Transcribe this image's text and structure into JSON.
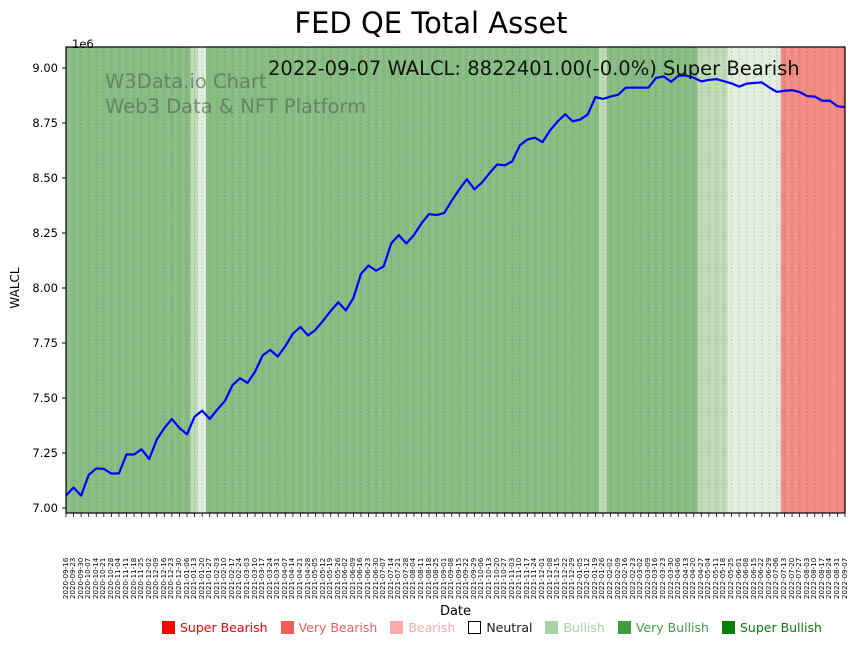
{
  "title": "FED QE Total Asset",
  "subtitle": "2022-09-07 WALCL: 8822401.00(-0.0%) Super Bearish",
  "watermark": {
    "line1": "W3Data.io Chart",
    "line2": "Web3 Data & NFT Platform"
  },
  "chart_data": {
    "type": "line",
    "title": "FED QE Total Asset",
    "xlabel": "Date",
    "ylabel": "WALCL",
    "y_offset_label": "1e6",
    "ylim": [
      6977000,
      9095000
    ],
    "yticks": [
      7000000,
      7250000,
      7500000,
      7750000,
      8000000,
      8250000,
      8500000,
      8750000,
      9000000
    ],
    "ytick_labels": [
      "7.00",
      "7.25",
      "7.50",
      "7.75",
      "8.00",
      "8.25",
      "8.50",
      "8.75",
      "9.00"
    ],
    "grid": {
      "vertical_dotted_per_week": true,
      "color": "#555555"
    },
    "line_color": "#0000ff",
    "x": [
      "2020-09-16",
      "2020-09-23",
      "2020-09-30",
      "2020-10-07",
      "2020-10-14",
      "2020-10-21",
      "2020-10-28",
      "2020-11-04",
      "2020-11-11",
      "2020-11-18",
      "2020-11-25",
      "2020-12-02",
      "2020-12-09",
      "2020-12-16",
      "2020-12-23",
      "2020-12-30",
      "2021-01-06",
      "2021-01-13",
      "2021-01-20",
      "2021-01-27",
      "2021-02-03",
      "2021-02-10",
      "2021-02-17",
      "2021-02-24",
      "2021-03-03",
      "2021-03-10",
      "2021-03-17",
      "2021-03-24",
      "2021-03-31",
      "2021-04-07",
      "2021-04-14",
      "2021-04-21",
      "2021-04-28",
      "2021-05-05",
      "2021-05-12",
      "2021-05-19",
      "2021-05-26",
      "2021-06-02",
      "2021-06-09",
      "2021-06-16",
      "2021-06-23",
      "2021-06-30",
      "2021-07-07",
      "2021-07-14",
      "2021-07-21",
      "2021-07-28",
      "2021-08-04",
      "2021-08-11",
      "2021-08-18",
      "2021-08-25",
      "2021-09-01",
      "2021-09-08",
      "2021-09-15",
      "2021-09-22",
      "2021-09-29",
      "2021-10-06",
      "2021-10-13",
      "2021-10-20",
      "2021-10-27",
      "2021-11-03",
      "2021-11-10",
      "2021-11-17",
      "2021-11-24",
      "2021-12-01",
      "2021-12-08",
      "2021-12-15",
      "2021-12-22",
      "2021-12-29",
      "2022-01-05",
      "2022-01-12",
      "2022-01-19",
      "2022-01-26",
      "2022-02-02",
      "2022-02-09",
      "2022-02-16",
      "2022-02-23",
      "2022-03-02",
      "2022-03-09",
      "2022-03-16",
      "2022-03-23",
      "2022-03-30",
      "2022-04-06",
      "2022-04-13",
      "2022-04-20",
      "2022-04-27",
      "2022-05-04",
      "2022-05-11",
      "2022-05-18",
      "2022-05-25",
      "2022-06-01",
      "2022-06-08",
      "2022-06-15",
      "2022-06-22",
      "2022-06-29",
      "2022-07-06",
      "2022-07-13",
      "2022-07-20",
      "2022-07-27",
      "2022-08-03",
      "2022-08-10",
      "2022-08-17",
      "2022-08-24",
      "2022-08-31",
      "2022-09-07"
    ],
    "series": [
      {
        "name": "WALCL",
        "values": [
          7056648,
          7093161,
          7056343,
          7150132,
          7179820,
          7177665,
          7156434,
          7157444,
          7243164,
          7243197,
          7266957,
          7222587,
          7310963,
          7363291,
          7404926,
          7363368,
          7334810,
          7414942,
          7442618,
          7404554,
          7447393,
          7485640,
          7557461,
          7590066,
          7568452,
          7619871,
          7693327,
          7718713,
          7688627,
          7735586,
          7793025,
          7822559,
          7784309,
          7810364,
          7851690,
          7895569,
          7935269,
          7898237,
          7954937,
          8064134,
          8102303,
          8078544,
          8098036,
          8202619,
          8240464,
          8202549,
          8240551,
          8293756,
          8336216,
          8331395,
          8340677,
          8396837,
          8448098,
          8494510,
          8448309,
          8479730,
          8521794,
          8561565,
          8557544,
          8575503,
          8648413,
          8674978,
          8683375,
          8662905,
          8716509,
          8756918,
          8789816,
          8757460,
          8765711,
          8789633,
          8867721,
          8859701,
          8869949,
          8878079,
          8910290,
          8911100,
          8910685,
          8910537,
          8954311,
          8962223,
          8937378,
          8965217,
          8965487,
          8955931,
          8939226,
          8945724,
          8949564,
          8940266,
          8929903,
          8915124,
          8929065,
          8932016,
          8934608,
          8911270,
          8891490,
          8896635,
          8898893,
          8890922,
          8872076,
          8869762,
          8851102,
          8851744,
          8826164,
          8822401
        ]
      }
    ],
    "last_point": {
      "date": "2022-09-07",
      "value": 8822401.0,
      "change_pct": "-0.0%",
      "signal": "Super Bearish"
    },
    "band_sentiments": [
      "very_bullish",
      "very_bullish",
      "very_bullish",
      "very_bullish",
      "very_bullish",
      "very_bullish",
      "very_bullish",
      "very_bullish",
      "very_bullish",
      "very_bullish",
      "very_bullish",
      "very_bullish",
      "very_bullish",
      "very_bullish",
      "very_bullish",
      "very_bullish",
      "very_bullish",
      "bullish",
      "neutral",
      "very_bullish",
      "very_bullish",
      "very_bullish",
      "very_bullish",
      "very_bullish",
      "very_bullish",
      "very_bullish",
      "very_bullish",
      "very_bullish",
      "very_bullish",
      "very_bullish",
      "very_bullish",
      "very_bullish",
      "very_bullish",
      "very_bullish",
      "very_bullish",
      "very_bullish",
      "very_bullish",
      "very_bullish",
      "very_bullish",
      "very_bullish",
      "very_bullish",
      "very_bullish",
      "very_bullish",
      "very_bullish",
      "very_bullish",
      "very_bullish",
      "very_bullish",
      "very_bullish",
      "very_bullish",
      "very_bullish",
      "very_bullish",
      "very_bullish",
      "very_bullish",
      "very_bullish",
      "very_bullish",
      "very_bullish",
      "very_bullish",
      "very_bullish",
      "very_bullish",
      "very_bullish",
      "very_bullish",
      "very_bullish",
      "very_bullish",
      "very_bullish",
      "very_bullish",
      "very_bullish",
      "very_bullish",
      "very_bullish",
      "very_bullish",
      "very_bullish",
      "very_bullish",
      "bullish",
      "very_bullish",
      "very_bullish",
      "very_bullish",
      "very_bullish",
      "very_bullish",
      "very_bullish",
      "very_bullish",
      "very_bullish",
      "very_bullish",
      "very_bullish",
      "very_bullish",
      "very_bullish",
      "bullish",
      "bullish",
      "bullish",
      "bullish",
      "neutral",
      "neutral",
      "neutral",
      "neutral",
      "neutral",
      "neutral",
      "neutral",
      "very_bearish",
      "very_bearish",
      "very_bearish",
      "very_bearish",
      "very_bearish",
      "very_bearish",
      "very_bearish",
      "very_bearish",
      "super_bearish"
    ],
    "sentiment_band_colors": {
      "super_bearish": "#f57f78",
      "very_bearish": "#f48a84",
      "bearish": "#f9c0bc",
      "neutral": "#e2eedd",
      "bullish": "#bedbb6",
      "very_bullish": "#87bc82",
      "super_bullish": "#4d9a4d"
    },
    "legend_position": "bottom",
    "legend": [
      {
        "label": "Super Bearish",
        "color": "#fe0000",
        "text_color": "#fe0000",
        "border": "#fe0000"
      },
      {
        "label": "Very Bearish",
        "color": "#f25c5c",
        "text_color": "#f25c5c",
        "border": "#f25c5c"
      },
      {
        "label": "Bearish",
        "color": "#ffaaaa",
        "text_color": "#ffaaaa",
        "border": "#ffaaaa"
      },
      {
        "label": "Neutral",
        "color": "#ffffff",
        "text_color": "#1a1a1a",
        "border": "#000000"
      },
      {
        "label": "Bullish",
        "color": "#a8d1a8",
        "text_color": "#a8d1a8",
        "border": "#a8d1a8"
      },
      {
        "label": "Very Bullish",
        "color": "#3f9c3f",
        "text_color": "#3f9c3f",
        "border": "#3f9c3f"
      },
      {
        "label": "Super Bullish",
        "color": "#087e08",
        "text_color": "#087e08",
        "border": "#087e08"
      }
    ]
  }
}
